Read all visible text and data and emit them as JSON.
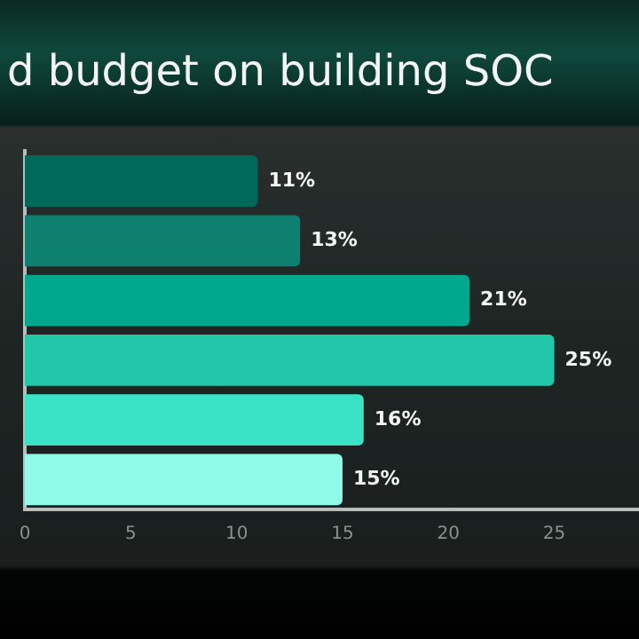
{
  "chart_data": {
    "type": "bar",
    "orientation": "horizontal",
    "title": "d budget on building SOC",
    "categories": [
      null,
      null,
      null,
      null,
      null,
      null
    ],
    "values": [
      11,
      13,
      21,
      25,
      16,
      15
    ],
    "colors": [
      "#00695a",
      "#0e8070",
      "#00a88e",
      "#22c7aa",
      "#3ae3c6",
      "#90fbe8"
    ],
    "value_labels": [
      "11%",
      "13%",
      "21%",
      "25%",
      "16%",
      "15%"
    ],
    "xlim": [
      0,
      29
    ],
    "xticks": [
      0,
      5,
      10,
      15,
      20,
      25
    ],
    "grid": false,
    "legend": false
  }
}
